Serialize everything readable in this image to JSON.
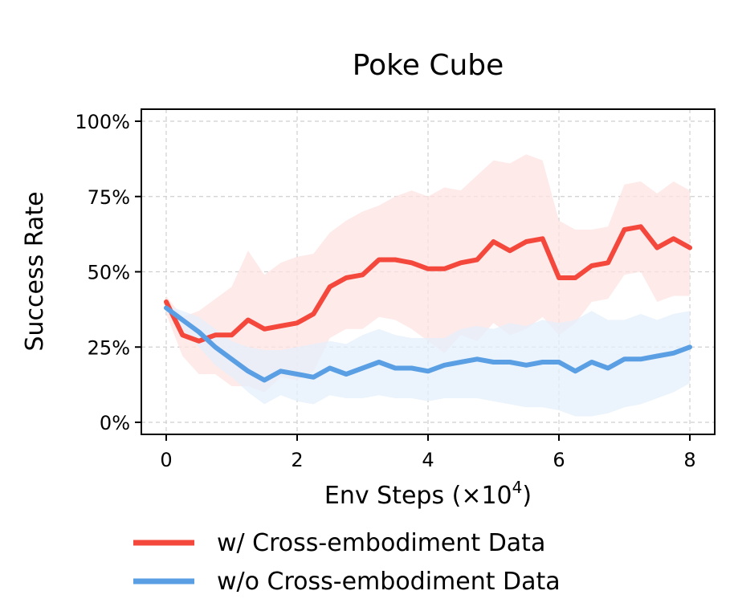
{
  "chart_data": {
    "type": "line",
    "title": "Poke Cube",
    "xlabel": "Env Steps (×10",
    "xlabel_exponent": "4",
    "xlabel_close": ")",
    "ylabel": "Success Rate",
    "xlim": [
      -0.38,
      8.38
    ],
    "ylim": [
      -0.04,
      1.04
    ],
    "xticks": [
      0,
      2,
      4,
      6,
      8
    ],
    "xtick_labels": [
      "0",
      "2",
      "4",
      "6",
      "8"
    ],
    "yticks": [
      0,
      0.25,
      0.5,
      0.75,
      1.0
    ],
    "ytick_labels": [
      "0%",
      "25%",
      "50%",
      "75%",
      "100%"
    ],
    "grid": true,
    "legend_position": "bottom",
    "x": [
      0,
      0.25,
      0.5,
      0.75,
      1.0,
      1.25,
      1.5,
      1.75,
      2.0,
      2.25,
      2.5,
      2.75,
      3.0,
      3.25,
      3.5,
      3.75,
      4.0,
      4.25,
      4.5,
      4.75,
      5.0,
      5.25,
      5.5,
      5.75,
      6.0,
      6.25,
      6.5,
      6.75,
      7.0,
      7.25,
      7.5,
      7.75,
      8.0
    ],
    "series": [
      {
        "name": "w/ Cross-embodiment Data",
        "color": "#f4483d",
        "band_color": "#fde3e2",
        "values": [
          0.4,
          0.29,
          0.27,
          0.29,
          0.29,
          0.34,
          0.31,
          0.32,
          0.33,
          0.36,
          0.45,
          0.48,
          0.49,
          0.54,
          0.54,
          0.53,
          0.51,
          0.51,
          0.53,
          0.54,
          0.6,
          0.57,
          0.6,
          0.61,
          0.48,
          0.48,
          0.52,
          0.53,
          0.64,
          0.65,
          0.58,
          0.61,
          0.58
        ],
        "upper": [
          0.42,
          0.35,
          0.37,
          0.41,
          0.45,
          0.57,
          0.49,
          0.53,
          0.55,
          0.56,
          0.63,
          0.67,
          0.7,
          0.72,
          0.75,
          0.77,
          0.75,
          0.78,
          0.77,
          0.82,
          0.87,
          0.86,
          0.89,
          0.87,
          0.67,
          0.64,
          0.64,
          0.65,
          0.79,
          0.8,
          0.76,
          0.8,
          0.77
        ],
        "lower": [
          0.36,
          0.22,
          0.16,
          0.16,
          0.12,
          0.12,
          0.1,
          0.15,
          0.14,
          0.17,
          0.28,
          0.31,
          0.31,
          0.35,
          0.34,
          0.31,
          0.27,
          0.23,
          0.29,
          0.27,
          0.33,
          0.29,
          0.31,
          0.35,
          0.29,
          0.33,
          0.4,
          0.41,
          0.49,
          0.5,
          0.4,
          0.42,
          0.42
        ]
      },
      {
        "name": "w/o Cross-embodiment Data",
        "color": "#5a9fe3",
        "band_color": "#e4effb",
        "values": [
          0.38,
          0.34,
          0.3,
          0.25,
          0.21,
          0.17,
          0.14,
          0.17,
          0.16,
          0.15,
          0.18,
          0.16,
          0.18,
          0.2,
          0.18,
          0.18,
          0.17,
          0.19,
          0.2,
          0.21,
          0.2,
          0.2,
          0.19,
          0.2,
          0.2,
          0.17,
          0.2,
          0.18,
          0.21,
          0.21,
          0.22,
          0.23,
          0.25
        ],
        "upper": [
          0.39,
          0.37,
          0.35,
          0.31,
          0.27,
          0.25,
          0.24,
          0.24,
          0.25,
          0.26,
          0.27,
          0.26,
          0.29,
          0.31,
          0.29,
          0.28,
          0.28,
          0.28,
          0.31,
          0.32,
          0.31,
          0.33,
          0.32,
          0.34,
          0.33,
          0.34,
          0.37,
          0.34,
          0.34,
          0.36,
          0.34,
          0.36,
          0.37
        ],
        "lower": [
          0.37,
          0.31,
          0.25,
          0.19,
          0.15,
          0.1,
          0.06,
          0.09,
          0.07,
          0.06,
          0.09,
          0.08,
          0.08,
          0.09,
          0.08,
          0.08,
          0.07,
          0.08,
          0.08,
          0.08,
          0.07,
          0.06,
          0.05,
          0.05,
          0.04,
          0.02,
          0.02,
          0.03,
          0.05,
          0.06,
          0.08,
          0.1,
          0.13
        ]
      }
    ]
  }
}
